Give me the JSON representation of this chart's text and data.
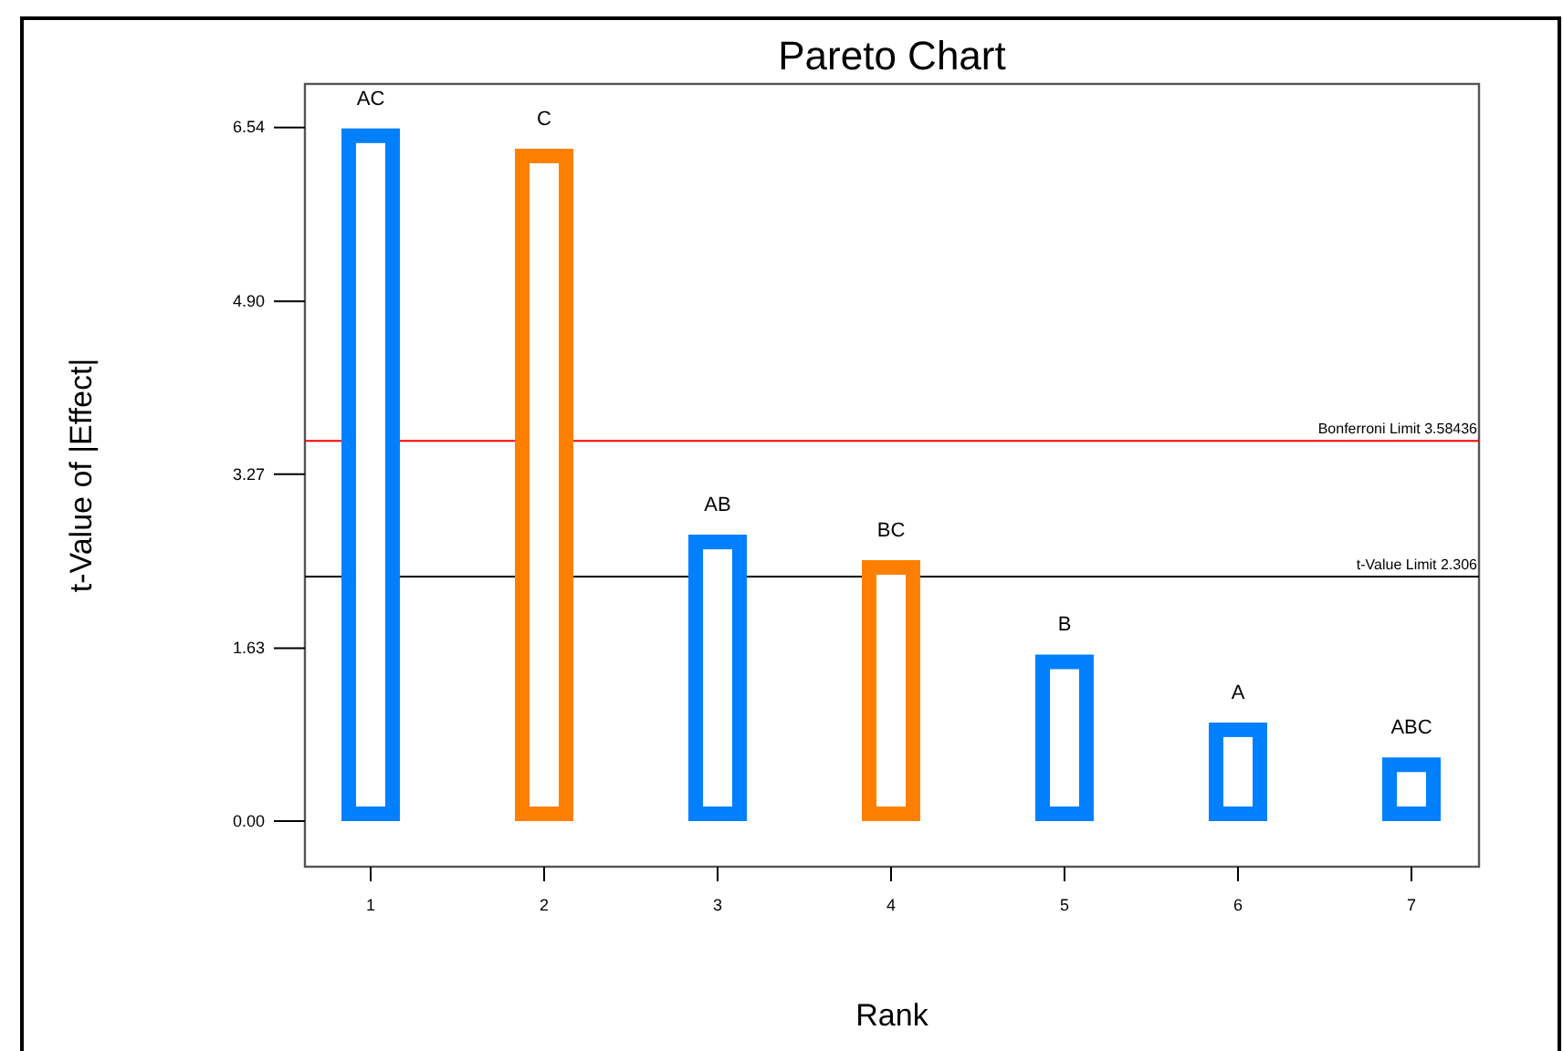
{
  "chart_data": {
    "type": "bar",
    "title": "Pareto Chart",
    "xlabel": "Rank",
    "ylabel": "t-Value of |Effect|",
    "categories": [
      "1",
      "2",
      "3",
      "4",
      "5",
      "6",
      "7"
    ],
    "values": [
      6.53,
      6.34,
      2.7,
      2.46,
      1.57,
      0.93,
      0.6
    ],
    "colors": [
      "#0080ff",
      "#ff8000",
      "#0080ff",
      "#ff8000",
      "#0080ff",
      "#0080ff",
      "#0080ff"
    ],
    "ylim": [
      -0.43,
      6.95
    ],
    "yticks": [
      {
        "value": 0,
        "label": "0.00"
      },
      1.63,
      3.27,
      {
        "value": 4.9,
        "label": "4.90"
      },
      6.54
    ],
    "ref_lines": [
      {
        "axis": "y",
        "value": 3.58436,
        "label": "Bonferroni Limit 3.58436",
        "color": "#ff0000"
      },
      {
        "axis": "y",
        "value": 2.306,
        "label": "t-Value Limit 2.306",
        "color": "#000000"
      }
    ],
    "annotations": [
      {
        "text": "AC",
        "x": "1",
        "y": 6.53
      },
      {
        "text": "C",
        "x": "2",
        "y": 6.34
      },
      {
        "text": "AB",
        "x": "3",
        "y": 2.7
      },
      {
        "text": "BC",
        "x": "4",
        "y": 2.46
      },
      {
        "text": "B",
        "x": "5",
        "y": 1.57
      },
      {
        "text": "A",
        "x": "6",
        "y": 0.93
      },
      {
        "text": "ABC",
        "x": "7",
        "y": 0.6
      }
    ]
  }
}
